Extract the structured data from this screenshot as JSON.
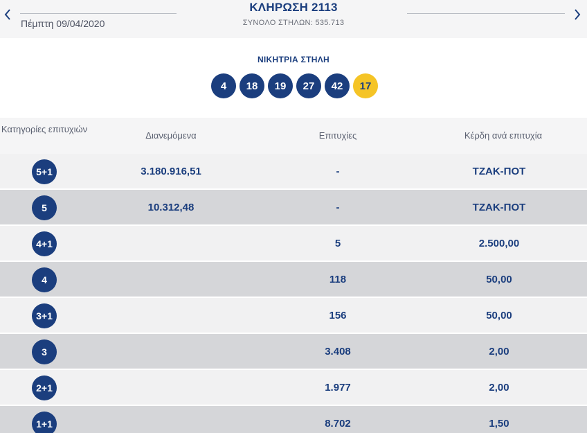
{
  "header": {
    "date": "Πέμπτη 09/04/2020",
    "title": "ΚΛΗΡΩΣΗ 2113",
    "subtitle": "ΣΥΝΟΛΟ ΣΤΗΛΩΝ: 535.713",
    "prev_icon": "chevron-left-icon",
    "next_icon": "chevron-right-icon"
  },
  "winning": {
    "label": "ΝΙΚΗΤΡΙΑ ΣΤΗΛΗ",
    "numbers": [
      "4",
      "18",
      "19",
      "27",
      "42"
    ],
    "bonus": "17"
  },
  "table": {
    "headers": {
      "category": "Κατηγορίες επιτυχιών",
      "distributed": "Διανεμόμενα",
      "winners": "Επιτυχίες",
      "prize": "Κέρδη ανά επιτυχία"
    },
    "rows": [
      {
        "category": "5+1",
        "distributed": "3.180.916,51",
        "winners": "-",
        "prize": "ΤΖΑΚ-ΠΟΤ"
      },
      {
        "category": "5",
        "distributed": "10.312,48",
        "winners": "-",
        "prize": "ΤΖΑΚ-ΠΟΤ"
      },
      {
        "category": "4+1",
        "distributed": "",
        "winners": "5",
        "prize": "2.500,00"
      },
      {
        "category": "4",
        "distributed": "",
        "winners": "118",
        "prize": "50,00"
      },
      {
        "category": "3+1",
        "distributed": "",
        "winners": "156",
        "prize": "50,00"
      },
      {
        "category": "3",
        "distributed": "",
        "winners": "3.408",
        "prize": "2,00"
      },
      {
        "category": "2+1",
        "distributed": "",
        "winners": "1.977",
        "prize": "2,00"
      },
      {
        "category": "1+1",
        "distributed": "",
        "winners": "8.702",
        "prize": "1,50"
      }
    ]
  },
  "colors": {
    "brand_blue": "#1b3e7e",
    "bonus_yellow": "#f5c426",
    "row_light": "#f1f1f2",
    "row_dark": "#d5d6d9"
  }
}
